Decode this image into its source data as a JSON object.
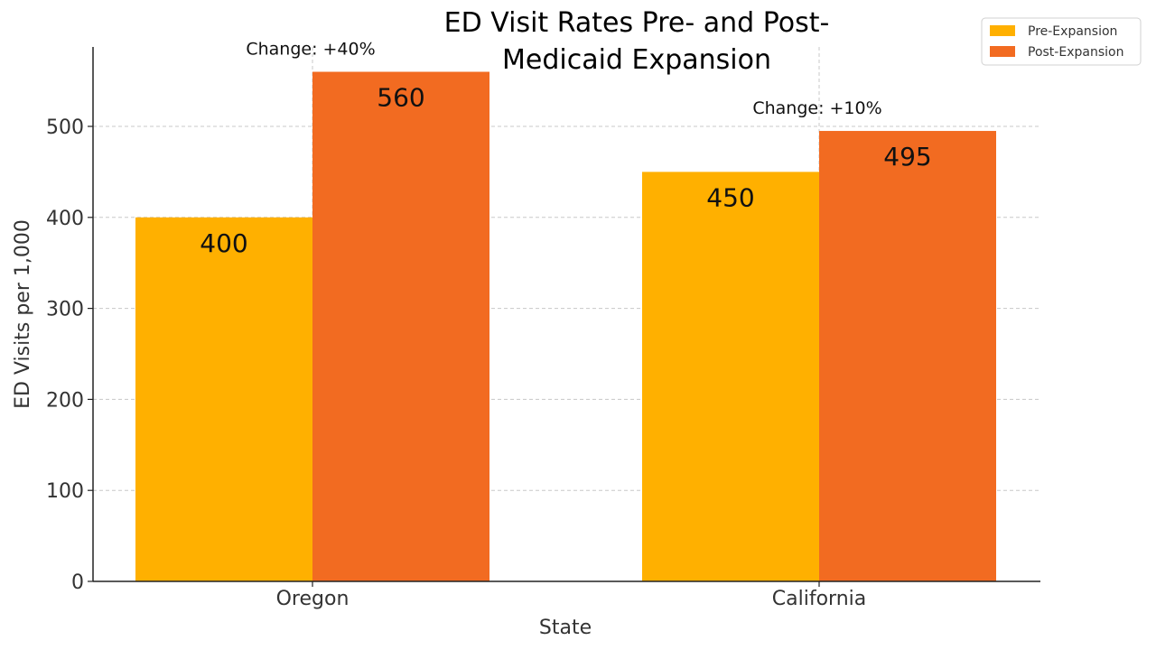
{
  "chart_data": {
    "type": "bar",
    "title": "ED Visit Rates Pre- and Post-Medicaid Expansion",
    "title_lines": [
      "ED Visit Rates Pre- and Post-",
      "Medicaid Expansion"
    ],
    "xlabel": "State",
    "ylabel": "ED Visits per 1,000",
    "categories": [
      "Oregon",
      "California"
    ],
    "series": [
      {
        "name": "Pre-Expansion",
        "values": [
          400,
          450
        ],
        "color": "#FFB000"
      },
      {
        "name": "Post-Expansion",
        "values": [
          560,
          495
        ],
        "color": "#F26B21"
      }
    ],
    "annotations": [
      "Change: +40%",
      "Change: +10%"
    ],
    "ylim": [
      0,
      590
    ],
    "yticks": [
      0,
      100,
      200,
      300,
      400,
      500
    ],
    "grid": true,
    "legend_position": "top-right"
  }
}
